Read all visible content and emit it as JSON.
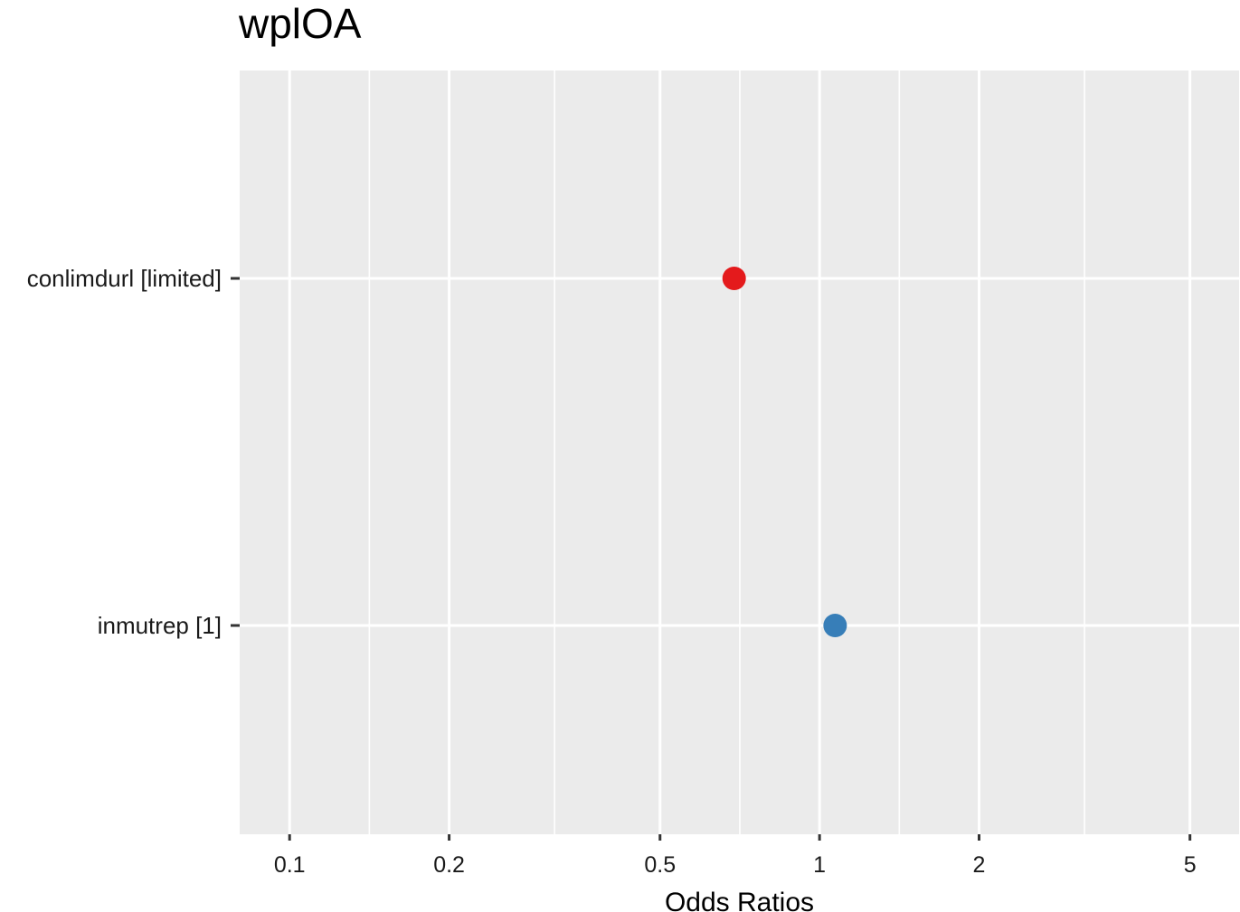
{
  "chart_data": {
    "type": "scatter",
    "title": "wplOA",
    "xlabel": "Odds Ratios",
    "ylabel": "",
    "x_scale": "log",
    "xlim": [
      0.0805,
      6.19
    ],
    "x_ticks": [
      0.1,
      0.2,
      0.5,
      1,
      2,
      5
    ],
    "x_tick_labels": [
      "0.1",
      "0.2",
      "0.5",
      "1",
      "2",
      "5"
    ],
    "x_minor_gridlines": [
      0.1414,
      0.3162,
      0.7071,
      1.4142,
      3.1623
    ],
    "grid": true,
    "background": "#EBEBEB",
    "categories": [
      "conlimdurl [limited]",
      "inmutrep [1]"
    ],
    "points": [
      {
        "label": "conlimdurl [limited]",
        "value": 0.69,
        "color": "#E41A1C"
      },
      {
        "label": "inmutrep [1]",
        "value": 1.07,
        "color": "#377EB8"
      }
    ]
  }
}
